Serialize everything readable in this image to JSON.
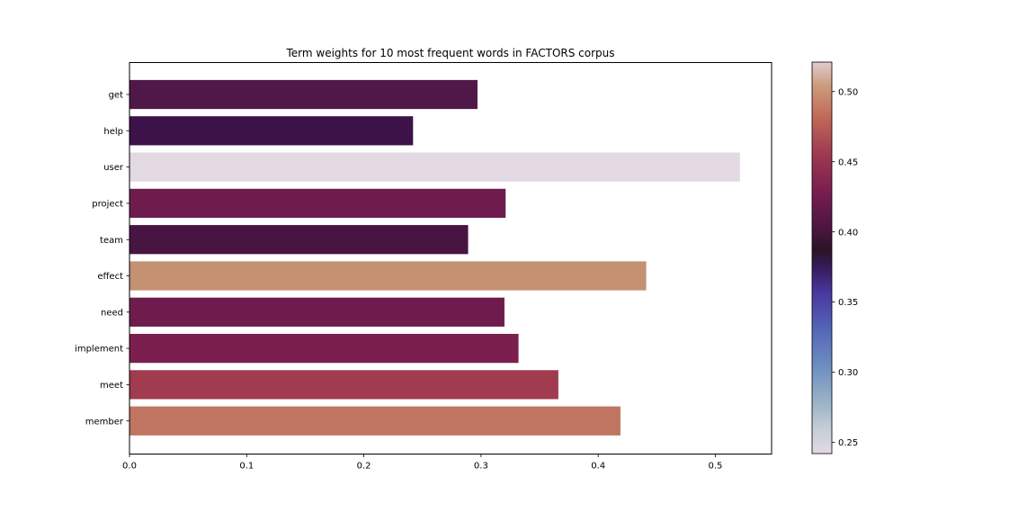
{
  "chart_data": {
    "type": "bar",
    "orientation": "horizontal",
    "title": "Term weights for 10 most frequent words in FACTORS corpus",
    "xlabel": "",
    "ylabel": "",
    "categories": [
      "get",
      "help",
      "user",
      "project",
      "team",
      "effect",
      "need",
      "implement",
      "meet",
      "member"
    ],
    "values": [
      0.297,
      0.242,
      0.521,
      0.321,
      0.289,
      0.441,
      0.32,
      0.332,
      0.366,
      0.419
    ],
    "xlim": [
      0,
      0.548
    ],
    "x_ticks": [
      "0.0",
      "0.1",
      "0.2",
      "0.3",
      "0.4",
      "0.5"
    ],
    "colorbar": {
      "colormap": "twilight",
      "range": [
        0.242,
        0.521
      ],
      "ticks": [
        "0.25",
        "0.30",
        "0.35",
        "0.40",
        "0.45",
        "0.50"
      ]
    },
    "bar_colors": [
      "#501848",
      "#3c1248",
      "#e2d9e2",
      "#6e1c4d",
      "#481442",
      "#c59173",
      "#6e1c4d",
      "#7b1f4e",
      "#a03b50",
      "#c07561"
    ],
    "grid": false,
    "legend": "none"
  }
}
